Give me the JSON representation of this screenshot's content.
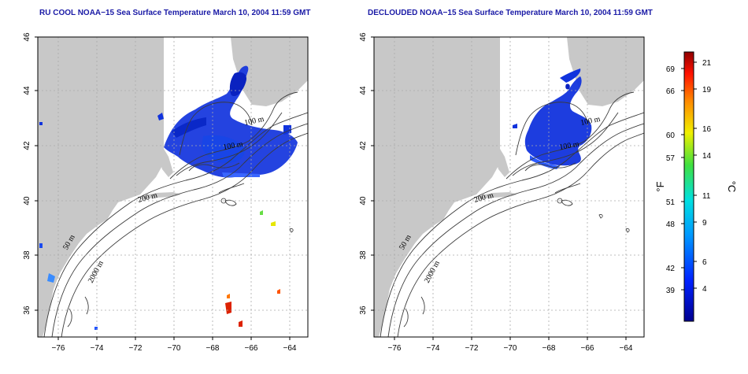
{
  "panels": [
    {
      "title": "RU COOL NOAA−15 Sea Surface Temperature March 10, 2004 11:59 GMT"
    },
    {
      "title": "DECLOUDED NOAA−15 Sea Surface Temperature March 10, 2004 11:59 GMT"
    }
  ],
  "map_axes": {
    "lat_labels": [
      "46",
      "44",
      "42",
      "40",
      "38",
      "36"
    ],
    "lon_labels": [
      "−76",
      "−74",
      "−72",
      "−70",
      "−68",
      "−66",
      "−64"
    ]
  },
  "contour_labels": {
    "c100a": "100 m",
    "c100b": "100 m",
    "c200": "200 m",
    "c50": "50 m",
    "c2000": "2000 m"
  },
  "colorbar": {
    "f_labels": [
      "69",
      "66",
      "60",
      "57",
      "51",
      "48",
      "42",
      "39"
    ],
    "c_labels": [
      "21",
      "19",
      "16",
      "14",
      "11",
      "9",
      "6",
      "4"
    ],
    "f_unit": "°F",
    "c_unit": "°C"
  },
  "colors": {
    "land": "#c8c8c8",
    "sst_cold": "#1133dd",
    "sst_warm": "#dd2200",
    "title": "#1a1aa6"
  }
}
